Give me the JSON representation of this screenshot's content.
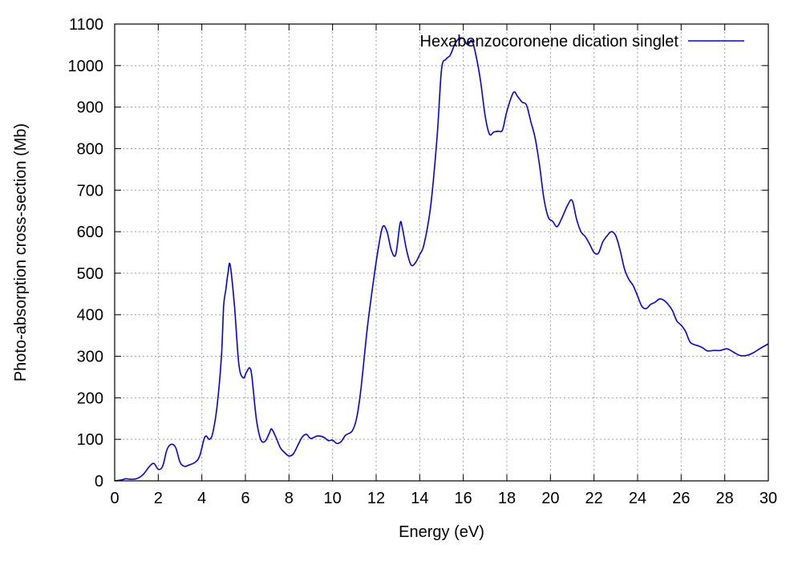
{
  "chart_data": {
    "type": "line",
    "title": "",
    "xlabel": "Energy (eV)",
    "ylabel": "Photo-absorption cross-section (Mb)",
    "xlim": [
      0,
      30
    ],
    "ylim": [
      0,
      1100
    ],
    "xticks": [
      0,
      2,
      4,
      6,
      8,
      10,
      12,
      14,
      16,
      18,
      20,
      22,
      24,
      26,
      28,
      30
    ],
    "yticks": [
      0,
      100,
      200,
      300,
      400,
      500,
      600,
      700,
      800,
      900,
      1000,
      1100
    ],
    "grid": true,
    "legend_position": "top-right",
    "series": [
      {
        "name": "Hexabenzocoronene dication singlet",
        "color": "#0000ee",
        "x": [
          0,
          0.3,
          0.5,
          0.7,
          1.0,
          1.3,
          1.6,
          1.8,
          2.0,
          2.2,
          2.4,
          2.6,
          2.8,
          3.0,
          3.2,
          3.4,
          3.7,
          3.9,
          4.1,
          4.2,
          4.35,
          4.5,
          4.7,
          4.9,
          5.0,
          5.1,
          5.2,
          5.3,
          5.5,
          5.7,
          5.9,
          6.05,
          6.2,
          6.3,
          6.5,
          6.7,
          6.9,
          7.1,
          7.2,
          7.4,
          7.6,
          7.8,
          8.0,
          8.2,
          8.4,
          8.6,
          8.8,
          9.0,
          9.3,
          9.6,
          9.8,
          10.0,
          10.2,
          10.4,
          10.6,
          10.9,
          11.1,
          11.3,
          11.6,
          11.9,
          12.1,
          12.3,
          12.5,
          12.7,
          12.9,
          13.1,
          13.2,
          13.4,
          13.6,
          13.8,
          14.0,
          14.2,
          14.5,
          14.8,
          15.0,
          15.2,
          15.4,
          15.6,
          15.8,
          16.0,
          16.2,
          16.4,
          16.6,
          16.8,
          17.0,
          17.2,
          17.4,
          17.6,
          17.8,
          18.0,
          18.3,
          18.5,
          18.7,
          18.9,
          19.1,
          19.3,
          19.5,
          19.7,
          19.9,
          20.1,
          20.3,
          20.5,
          20.8,
          21.0,
          21.2,
          21.4,
          21.6,
          21.8,
          22.0,
          22.2,
          22.4,
          22.6,
          22.8,
          23.0,
          23.2,
          23.4,
          23.6,
          23.8,
          24.0,
          24.2,
          24.4,
          24.6,
          24.8,
          25.0,
          25.2,
          25.4,
          25.6,
          25.8,
          26.0,
          26.2,
          26.4,
          26.6,
          26.8,
          27.0,
          27.2,
          27.5,
          27.8,
          28.1,
          28.4,
          28.7,
          29.0,
          29.3,
          29.6,
          30.0
        ],
        "values": [
          0,
          2,
          5,
          4,
          5,
          15,
          35,
          42,
          28,
          35,
          75,
          88,
          80,
          45,
          35,
          38,
          45,
          60,
          100,
          108,
          100,
          115,
          180,
          300,
          420,
          460,
          500,
          520,
          420,
          280,
          248,
          262,
          272,
          250,
          150,
          100,
          95,
          115,
          125,
          105,
          80,
          68,
          60,
          65,
          85,
          105,
          112,
          102,
          108,
          105,
          97,
          98,
          90,
          95,
          110,
          120,
          150,
          220,
          370,
          490,
          560,
          612,
          600,
          555,
          545,
          620,
          610,
          555,
          520,
          525,
          545,
          570,
          660,
          830,
          990,
          1015,
          1025,
          1050,
          1065,
          1065,
          1050,
          1060,
          1020,
          960,
          880,
          835,
          840,
          842,
          845,
          890,
          935,
          925,
          912,
          905,
          865,
          825,
          760,
          680,
          635,
          625,
          612,
          630,
          665,
          675,
          630,
          600,
          588,
          570,
          550,
          548,
          575,
          590,
          600,
          590,
          555,
          510,
          485,
          470,
          445,
          420,
          415,
          425,
          430,
          438,
          435,
          425,
          410,
          385,
          375,
          360,
          335,
          328,
          325,
          320,
          313,
          314,
          314,
          318,
          310,
          302,
          302,
          308,
          318,
          330
        ]
      }
    ]
  }
}
